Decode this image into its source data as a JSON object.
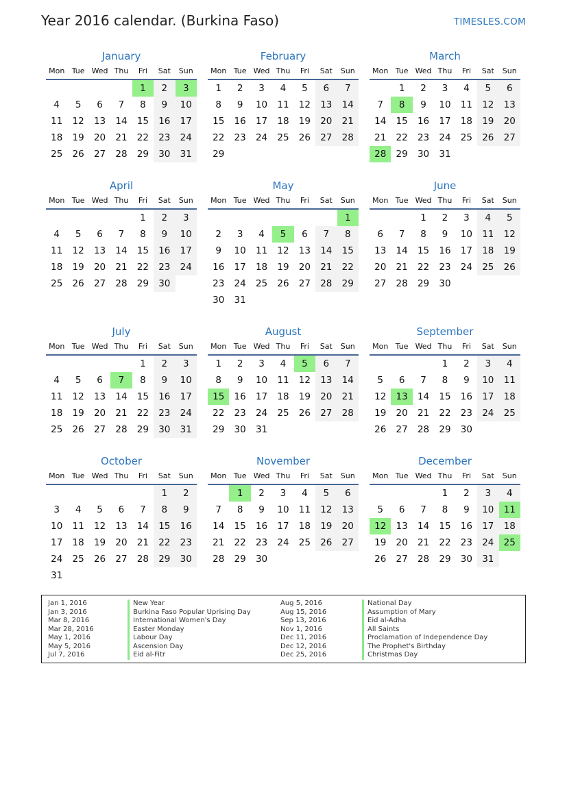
{
  "header": {
    "title": "Year 2016 calendar. (Burkina Faso)",
    "brand": "TIMESLES.COM"
  },
  "colors": {
    "accent": "#2a74bd",
    "holiday": "#95f08b",
    "weekend": "#f2f2f2",
    "rule": "#4a6795"
  },
  "weekdays": [
    "Mon",
    "Tue",
    "Wed",
    "Thu",
    "Fri",
    "Sat",
    "Sun"
  ],
  "months": [
    {
      "name": "January",
      "holidays": [
        1,
        3
      ],
      "weeks": [
        [
          null,
          null,
          null,
          null,
          1,
          2,
          3
        ],
        [
          4,
          5,
          6,
          7,
          8,
          9,
          10
        ],
        [
          11,
          12,
          13,
          14,
          15,
          16,
          17
        ],
        [
          18,
          19,
          20,
          21,
          22,
          23,
          24
        ],
        [
          25,
          26,
          27,
          28,
          29,
          30,
          31
        ]
      ]
    },
    {
      "name": "February",
      "holidays": [],
      "weeks": [
        [
          1,
          2,
          3,
          4,
          5,
          6,
          7
        ],
        [
          8,
          9,
          10,
          11,
          12,
          13,
          14
        ],
        [
          15,
          16,
          17,
          18,
          19,
          20,
          21
        ],
        [
          22,
          23,
          24,
          25,
          26,
          27,
          28
        ],
        [
          29
        ]
      ]
    },
    {
      "name": "March",
      "holidays": [
        8,
        28
      ],
      "weeks": [
        [
          null,
          1,
          2,
          3,
          4,
          5,
          6
        ],
        [
          7,
          8,
          9,
          10,
          11,
          12,
          13
        ],
        [
          14,
          15,
          16,
          17,
          18,
          19,
          20
        ],
        [
          21,
          22,
          23,
          24,
          25,
          26,
          27
        ],
        [
          28,
          29,
          30,
          31
        ]
      ]
    },
    {
      "name": "April",
      "holidays": [],
      "weeks": [
        [
          null,
          null,
          null,
          null,
          1,
          2,
          3
        ],
        [
          4,
          5,
          6,
          7,
          8,
          9,
          10
        ],
        [
          11,
          12,
          13,
          14,
          15,
          16,
          17
        ],
        [
          18,
          19,
          20,
          21,
          22,
          23,
          24
        ],
        [
          25,
          26,
          27,
          28,
          29,
          30
        ]
      ]
    },
    {
      "name": "May",
      "holidays": [
        1,
        5
      ],
      "weeks": [
        [
          null,
          null,
          null,
          null,
          null,
          null,
          1
        ],
        [
          2,
          3,
          4,
          5,
          6,
          7,
          8
        ],
        [
          9,
          10,
          11,
          12,
          13,
          14,
          15
        ],
        [
          16,
          17,
          18,
          19,
          20,
          21,
          22
        ],
        [
          23,
          24,
          25,
          26,
          27,
          28,
          29
        ],
        [
          30,
          31
        ]
      ]
    },
    {
      "name": "June",
      "holidays": [],
      "weeks": [
        [
          null,
          null,
          1,
          2,
          3,
          4,
          5
        ],
        [
          6,
          7,
          8,
          9,
          10,
          11,
          12
        ],
        [
          13,
          14,
          15,
          16,
          17,
          18,
          19
        ],
        [
          20,
          21,
          22,
          23,
          24,
          25,
          26
        ],
        [
          27,
          28,
          29,
          30
        ]
      ]
    },
    {
      "name": "July",
      "holidays": [
        7
      ],
      "weeks": [
        [
          null,
          null,
          null,
          null,
          1,
          2,
          3
        ],
        [
          4,
          5,
          6,
          7,
          8,
          9,
          10
        ],
        [
          11,
          12,
          13,
          14,
          15,
          16,
          17
        ],
        [
          18,
          19,
          20,
          21,
          22,
          23,
          24
        ],
        [
          25,
          26,
          27,
          28,
          29,
          30,
          31
        ]
      ]
    },
    {
      "name": "August",
      "holidays": [
        5,
        15
      ],
      "weeks": [
        [
          1,
          2,
          3,
          4,
          5,
          6,
          7
        ],
        [
          8,
          9,
          10,
          11,
          12,
          13,
          14
        ],
        [
          15,
          16,
          17,
          18,
          19,
          20,
          21
        ],
        [
          22,
          23,
          24,
          25,
          26,
          27,
          28
        ],
        [
          29,
          30,
          31
        ]
      ]
    },
    {
      "name": "September",
      "holidays": [
        13
      ],
      "weeks": [
        [
          null,
          null,
          null,
          1,
          2,
          3,
          4
        ],
        [
          5,
          6,
          7,
          8,
          9,
          10,
          11
        ],
        [
          12,
          13,
          14,
          15,
          16,
          17,
          18
        ],
        [
          19,
          20,
          21,
          22,
          23,
          24,
          25
        ],
        [
          26,
          27,
          28,
          29,
          30
        ]
      ]
    },
    {
      "name": "October",
      "holidays": [],
      "weeks": [
        [
          null,
          null,
          null,
          null,
          null,
          1,
          2
        ],
        [
          3,
          4,
          5,
          6,
          7,
          8,
          9
        ],
        [
          10,
          11,
          12,
          13,
          14,
          15,
          16
        ],
        [
          17,
          18,
          19,
          20,
          21,
          22,
          23
        ],
        [
          24,
          25,
          26,
          27,
          28,
          29,
          30
        ],
        [
          31
        ]
      ]
    },
    {
      "name": "November",
      "holidays": [
        1
      ],
      "weeks": [
        [
          null,
          1,
          2,
          3,
          4,
          5,
          6
        ],
        [
          7,
          8,
          9,
          10,
          11,
          12,
          13
        ],
        [
          14,
          15,
          16,
          17,
          18,
          19,
          20
        ],
        [
          21,
          22,
          23,
          24,
          25,
          26,
          27
        ],
        [
          28,
          29,
          30
        ]
      ]
    },
    {
      "name": "December",
      "holidays": [
        11,
        12,
        25
      ],
      "weeks": [
        [
          null,
          null,
          null,
          1,
          2,
          3,
          4
        ],
        [
          5,
          6,
          7,
          8,
          9,
          10,
          11
        ],
        [
          12,
          13,
          14,
          15,
          16,
          17,
          18
        ],
        [
          19,
          20,
          21,
          22,
          23,
          24,
          25
        ],
        [
          26,
          27,
          28,
          29,
          30,
          31
        ]
      ]
    }
  ],
  "legend": [
    [
      {
        "date": "Jan 1, 2016",
        "name": "New Year"
      },
      {
        "date": "Jan 3, 2016",
        "name": "Burkina Faso Popular Uprising Day"
      },
      {
        "date": "Mar 8, 2016",
        "name": "International Women's Day"
      },
      {
        "date": "Mar 28, 2016",
        "name": "Easter Monday"
      },
      {
        "date": "May 1, 2016",
        "name": "Labour Day"
      },
      {
        "date": "May 5, 2016",
        "name": "Ascension Day"
      },
      {
        "date": "Jul 7, 2016",
        "name": "Eid al-Fitr"
      }
    ],
    [
      {
        "date": "Aug 5, 2016",
        "name": "National Day"
      },
      {
        "date": "Aug 15, 2016",
        "name": "Assumption of Mary"
      },
      {
        "date": "Sep 13, 2016",
        "name": "Eid al-Adha"
      },
      {
        "date": "Nov 1, 2016",
        "name": "All Saints"
      },
      {
        "date": "Dec 11, 2016",
        "name": "Proclamation of Independence Day"
      },
      {
        "date": "Dec 12, 2016",
        "name": "The Prophet's Birthday"
      },
      {
        "date": "Dec 25, 2016",
        "name": "Christmas Day"
      }
    ]
  ]
}
